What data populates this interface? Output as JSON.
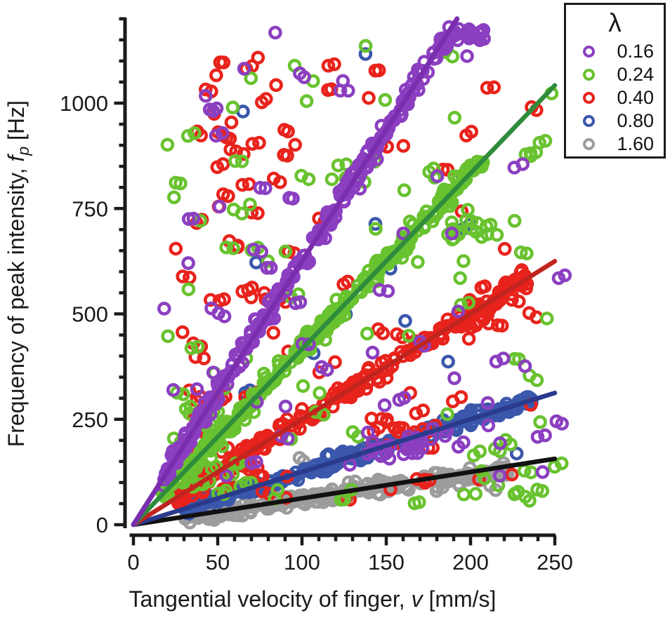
{
  "chart_data": {
    "type": "scatter",
    "title": "",
    "xlabel": {
      "prefix": "Tangential velocity of finger, ",
      "symbol": "v",
      "unit": " [mm/s]"
    },
    "ylabel": {
      "prefix": "Frequency of peak intensity, ",
      "symbol": "f",
      "subscript": "p",
      "unit": " [Hz]"
    },
    "x_axis": {
      "min": 0,
      "max": 250,
      "major_ticks": [
        0,
        50,
        100,
        150,
        200,
        250
      ],
      "minor_step": 10,
      "grid": false
    },
    "y_axis": {
      "min": 0,
      "max": 1200,
      "major_ticks": [
        0,
        250,
        500,
        750,
        1000
      ],
      "minor_step": 50,
      "grid": false
    },
    "legend": {
      "title": "λ",
      "position": "top-right",
      "items": [
        {
          "label": "0.16",
          "color": "#8B3FC0"
        },
        {
          "label": "0.24",
          "color": "#69C22F"
        },
        {
          "label": "0.40",
          "color": "#E8231C"
        },
        {
          "label": "0.80",
          "color": "#3A57AB"
        },
        {
          "label": "1.60",
          "color": "#9C9C9C"
        }
      ]
    },
    "series": [
      {
        "name": "lambda-0.16",
        "label": "0.16",
        "lambda": 0.16,
        "seed": 7,
        "marker_color": "#8B3FC0",
        "line_color": "#7A2EAE",
        "line": {
          "v0": 0,
          "f0": 0,
          "v1": 192,
          "f1": 1200
        },
        "online": {
          "n": 210,
          "v_min": 18,
          "v_max": 208,
          "f_sd": 13,
          "f_cap": 1165,
          "dup": 0.5
        },
        "outliers": {
          "n": 58,
          "v_min": 15,
          "v_max": 253,
          "v_pow": 1.0,
          "f_min": 60,
          "f_max": 1170,
          "pair": 0.5
        },
        "bands": [
          {
            "n": 24,
            "slope": 1.15,
            "v_min": 125,
            "v_max": 195,
            "f_sd": 13
          }
        ],
        "clusters": []
      },
      {
        "name": "lambda-0.24",
        "label": "0.24",
        "lambda": 0.24,
        "seed": 13,
        "marker_color": "#69C22F",
        "line_color": "#2F8C3C",
        "line": {
          "v0": 0,
          "f0": 0,
          "v1": 250,
          "f1": 1042
        },
        "online": {
          "n": 200,
          "v_min": 17,
          "v_max": 208,
          "f_sd": 12,
          "dup": 0.45
        },
        "outliers": {
          "n": 88,
          "v_min": 20,
          "v_max": 250,
          "v_pow": 1.25,
          "f_min": 45,
          "f_max": 1140,
          "pair": 0.45
        },
        "bands": [],
        "clusters": [
          {
            "n": 24,
            "v_min": 28,
            "v_max": 70,
            "f_min": 60,
            "f_max": 280,
            "pair": 0.5
          },
          {
            "n": 10,
            "v_min": 188,
            "v_max": 245,
            "f_min": 40,
            "f_max": 140,
            "pair": 0.35
          },
          {
            "n": 9,
            "v_min": 185,
            "v_max": 212,
            "f_min": 650,
            "f_max": 735,
            "pair": 0.45
          }
        ]
      },
      {
        "name": "lambda-0.40",
        "label": "0.40",
        "lambda": 0.4,
        "seed": 23,
        "marker_color": "#E8231C",
        "line_color": "#C0241E",
        "line": {
          "v0": 0,
          "f0": 0,
          "v1": 250,
          "f1": 625
        },
        "online": {
          "n": 205,
          "v_min": 25,
          "v_max": 236,
          "f_sd": 11,
          "dup": 0.4
        },
        "outliers": {
          "n": 60,
          "v_min": 25,
          "v_max": 250,
          "v_pow": 1.2,
          "f_min": 60,
          "f_max": 1100,
          "pair": 0.5
        },
        "bands": [],
        "clusters": [
          {
            "n": 26,
            "v_min": 28,
            "v_max": 90,
            "f_min": 520,
            "f_max": 1120,
            "pair": 0.6
          },
          {
            "n": 30,
            "v_min": 30,
            "v_max": 75,
            "f_min": 90,
            "f_max": 320,
            "pair": 0.5
          },
          {
            "n": 12,
            "v_min": 140,
            "v_max": 185,
            "f_min": 170,
            "f_max": 260,
            "pair": 0.5
          },
          {
            "n": 8,
            "v_min": 195,
            "v_max": 240,
            "f_min": 430,
            "f_max": 510,
            "pair": 0.5
          }
        ]
      },
      {
        "name": "lambda-0.80",
        "label": "0.80",
        "lambda": 0.8,
        "seed": 31,
        "marker_color": "#3A57AB",
        "line_color": "#2A3A8C",
        "line": {
          "v0": 0,
          "f0": 0,
          "v1": 250,
          "f1": 312.5
        },
        "online": {
          "n": 200,
          "v_min": 30,
          "v_max": 237,
          "f_sd": 8,
          "dup": 0.4
        },
        "outliers": {
          "n": 13,
          "v_min": 20,
          "v_max": 250,
          "v_pow": 1.0,
          "f_min": 100,
          "f_max": 1150,
          "pair": 0.4
        },
        "bands": [],
        "clusters": []
      },
      {
        "name": "lambda-1.60",
        "label": "1.60",
        "lambda": 1.6,
        "seed": 41,
        "marker_color": "#9C9C9C",
        "line_color": "#111111",
        "line": {
          "v0": 0,
          "f0": 0,
          "v1": 250,
          "f1": 156.25
        },
        "online": {
          "n": 200,
          "v_min": 30,
          "v_max": 222,
          "f_sd": 7,
          "dup": 0.4,
          "slope_mult": 0.94
        },
        "outliers": {
          "n": 9,
          "v_min": 70,
          "v_max": 240,
          "v_pow": 1.0,
          "f_min": 30,
          "f_max": 160,
          "pair": 0.5
        },
        "bands": [],
        "clusters": []
      }
    ]
  }
}
